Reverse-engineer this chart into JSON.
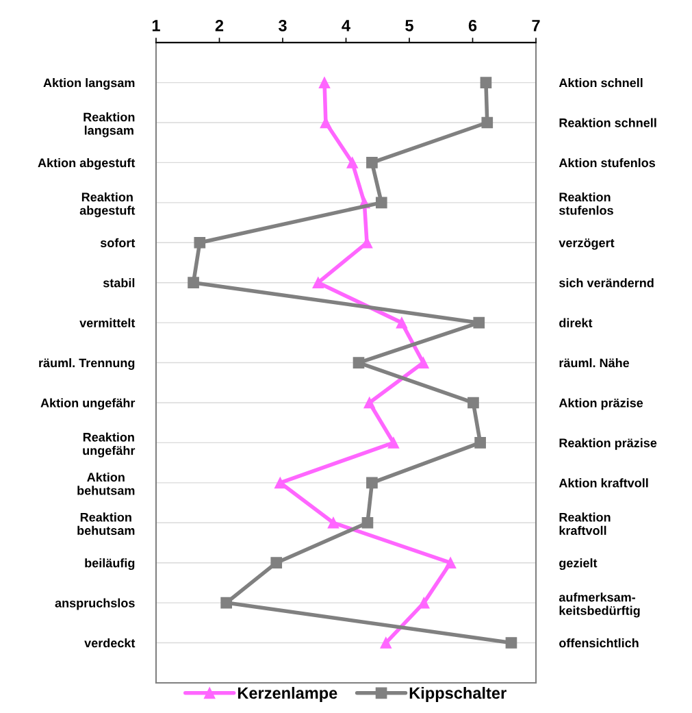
{
  "chart_data": {
    "type": "line",
    "orientation": "horizontal",
    "categories": [
      "Aktion langsam",
      "Reaktion\nlangsam",
      "Aktion abgestuft",
      "Reaktion\nabgestuft",
      "sofort",
      "stabil",
      "vermittelt",
      "räuml. Trennung",
      "Aktion ungefähr",
      "Reaktion\nungefähr",
      "Aktion\nbehutsam",
      "Reaktion\nbehutsam",
      "beiläufig",
      "anspruchslos",
      "verdeckt"
    ],
    "y2_categories": [
      "Aktion schnell",
      "Reaktion schnell",
      "Aktion stufenlos",
      "Reaktion\nstufenlos",
      "verzögert",
      "sich verändernd",
      "direkt",
      "räuml. Nähe",
      "Aktion präzise",
      "Reaktion präzise",
      "Aktion kraftvoll",
      "Reaktion\nkraftvoll",
      "gezielt",
      "aufmerksam-\nkeitsbedürftig",
      "offensichtlich"
    ],
    "series": [
      {
        "name": "Kerzenlampe",
        "color": "#ff66ff",
        "marker": "triangle",
        "values": [
          3.66,
          3.68,
          4.1,
          4.29,
          4.33,
          3.56,
          4.88,
          5.22,
          4.37,
          4.75,
          2.96,
          3.8,
          5.65,
          5.23,
          4.63
        ]
      },
      {
        "name": "Kippschalter",
        "color": "#808080",
        "marker": "square",
        "values": [
          6.21,
          6.23,
          4.41,
          4.56,
          1.69,
          1.59,
          6.1,
          4.2,
          6.01,
          6.12,
          4.41,
          4.34,
          2.9,
          2.11,
          6.61
        ]
      }
    ],
    "xlim": [
      1,
      7
    ],
    "xticks": [
      1,
      2,
      3,
      4,
      5,
      6,
      7
    ],
    "grid": "y",
    "legend": "bottom",
    "line_style": "solid"
  }
}
